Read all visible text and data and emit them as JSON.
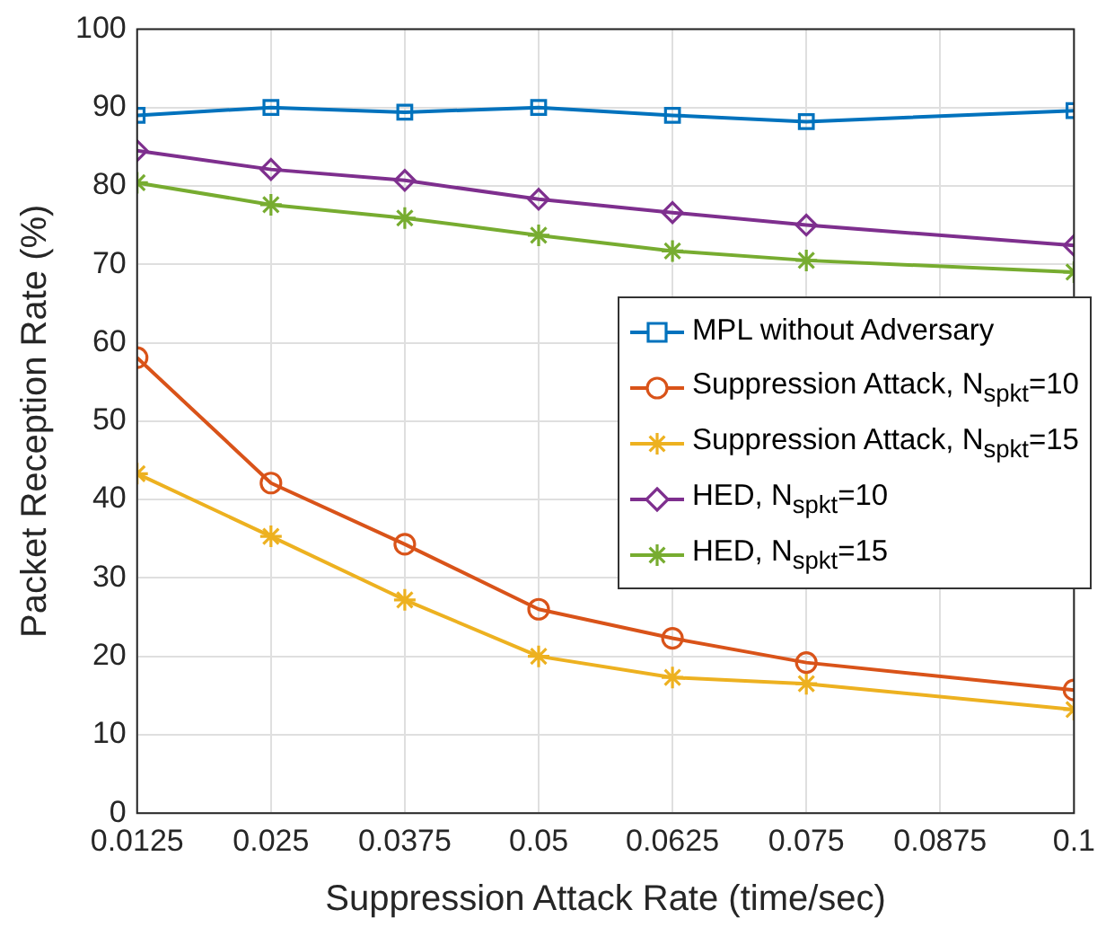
{
  "chart_data": {
    "type": "line",
    "xlabel": "Suppression Attack Rate (time/sec)",
    "ylabel": "Packet Reception Rate (%)",
    "x": [
      0.0125,
      0.025,
      0.0375,
      0.05,
      0.0625,
      0.075,
      0.1
    ],
    "xlim": [
      0.0125,
      0.1
    ],
    "xticks": [
      0.0125,
      0.025,
      0.0375,
      0.05,
      0.0625,
      0.075,
      0.0875,
      0.1
    ],
    "ylim": [
      0,
      100
    ],
    "yticks": [
      0,
      10,
      20,
      30,
      40,
      50,
      60,
      70,
      80,
      90,
      100
    ],
    "grid": true,
    "legend": "right",
    "line_style": "solid",
    "series": [
      {
        "name": "MPL without Adversary",
        "color": "#0072bd",
        "marker": "square",
        "values": [
          89,
          90,
          89.4,
          90,
          89,
          88.2,
          89.6
        ]
      },
      {
        "name": "Suppression Attack, N$_{spkt}$=10",
        "color": "#d95319",
        "marker": "circle",
        "values": [
          58.1,
          42.1,
          34.3,
          26,
          22.3,
          19.2,
          15.7
        ]
      },
      {
        "name": "Suppression Attack, N$_{spkt}$=15",
        "color": "#edb120",
        "marker": "cross",
        "values": [
          43.3,
          35.3,
          27.2,
          20,
          17.3,
          16.5,
          13.2
        ]
      },
      {
        "name": "HED, N$_{spkt}$=10",
        "color": "#7e2f8e",
        "marker": "diamond",
        "values": [
          84.5,
          82.1,
          80.7,
          78.3,
          76.6,
          75,
          72.4
        ]
      },
      {
        "name": "HED, N$_{spkt}$=15",
        "color": "#77ac30",
        "marker": "cross",
        "values": [
          80.4,
          77.6,
          75.9,
          73.7,
          71.7,
          70.5,
          69
        ]
      }
    ]
  }
}
